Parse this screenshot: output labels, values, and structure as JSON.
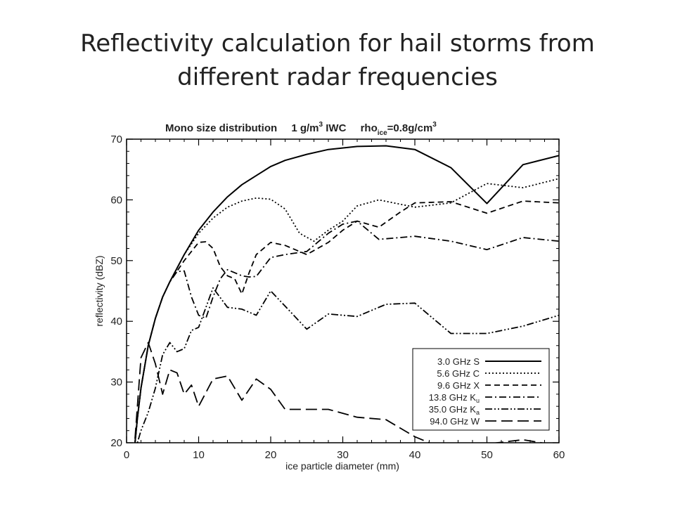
{
  "slide": {
    "title_line1": "Reflectivity calculation for hail storms from",
    "title_line2": "different radar frequencies"
  },
  "chart_data": {
    "type": "line",
    "title_parts": {
      "main": "Mono size distribution",
      "iwc": "1 g/m",
      "iwc_sup": "3",
      "iwc_tail": " IWC",
      "rho": "rho",
      "rho_sub": "ice",
      "rho_val": "=0.8g/cm",
      "rho_sup": "3"
    },
    "xlabel": "ice particle diameter (mm)",
    "ylabel": "reflectivity (dBZ)",
    "xlim": [
      0,
      60
    ],
    "ylim": [
      20,
      70
    ],
    "xticks": [
      0,
      10,
      20,
      30,
      40,
      50,
      60
    ],
    "yticks": [
      20,
      30,
      40,
      50,
      60,
      70
    ],
    "grid": false,
    "legend_position": "bottom-right",
    "series": [
      {
        "name": "3.0 GHz S",
        "name_main": "3.0 GHz S",
        "name_sub": "",
        "dash": "solid",
        "x": [
          1,
          1.5,
          2,
          3,
          4,
          5,
          6,
          8,
          10,
          12,
          14,
          16,
          18,
          20,
          22,
          25,
          28,
          32,
          36,
          40,
          45,
          50,
          55,
          60
        ],
        "y": [
          18,
          24,
          29,
          36,
          40.5,
          44,
          46.5,
          51,
          55,
          58,
          60.5,
          62.5,
          64,
          65.5,
          66.5,
          67.5,
          68.3,
          68.8,
          68.9,
          68.3,
          65.3,
          59.4,
          65.8,
          67.3
        ]
      },
      {
        "name": "5.6 GHz C",
        "name_main": "5.6 GHz C",
        "name_sub": "",
        "dash": "dot",
        "x": [
          1,
          1.5,
          2,
          3,
          4,
          5,
          6,
          8,
          10,
          12,
          14,
          16,
          18,
          20,
          22,
          24,
          26,
          28,
          30,
          32,
          35,
          40,
          45,
          50,
          55,
          60
        ],
        "y": [
          18,
          24,
          29,
          36,
          40.5,
          44,
          46.5,
          51,
          54.5,
          57,
          58.8,
          59.8,
          60.3,
          60.1,
          58.5,
          54.5,
          53.2,
          55,
          56.5,
          59,
          60,
          58.8,
          59.5,
          62.7,
          62,
          63.5
        ]
      },
      {
        "name": "9.6 GHz X",
        "name_main": "9.6 GHz X",
        "name_sub": "",
        "dash": "dash",
        "x": [
          1,
          1.5,
          2,
          3,
          4,
          5,
          6,
          8,
          10,
          11,
          12,
          13,
          14,
          15,
          16,
          17,
          18,
          20,
          22,
          25,
          28,
          30,
          32,
          35,
          38,
          40,
          45,
          50,
          55,
          60
        ],
        "y": [
          18,
          24,
          29,
          36,
          40.5,
          44,
          46.5,
          50,
          53,
          53.1,
          52,
          49,
          47.5,
          47,
          44.5,
          48,
          51,
          53,
          52.5,
          51,
          53,
          55,
          56.5,
          55.5,
          58,
          59.5,
          59.7,
          57.8,
          59.8,
          59.5
        ]
      },
      {
        "name": "13.8 GHz Ku",
        "name_main": "13.8 GHz K",
        "name_sub": "u",
        "dash": "dashdot",
        "x": [
          1,
          1.5,
          2,
          3,
          4,
          5,
          6,
          7,
          8,
          9,
          10,
          11,
          12,
          13,
          14,
          15,
          16,
          17,
          18,
          20,
          22,
          25,
          28,
          30,
          32,
          35,
          40,
          45,
          50,
          55,
          60
        ],
        "y": [
          18,
          24,
          29,
          36,
          40.5,
          44,
          46.5,
          48.2,
          48.3,
          44,
          41,
          40.5,
          44,
          47,
          48.5,
          48,
          47.5,
          47.3,
          47.4,
          50.5,
          51,
          51.5,
          54.5,
          56,
          56.5,
          53.5,
          54,
          53.2,
          51.8,
          53.8,
          53.2
        ]
      },
      {
        "name": "35.0 GHz Ka",
        "name_main": "35.0 GHz K",
        "name_sub": "a",
        "dash": "dashdotdot",
        "x": [
          1,
          2,
          3,
          4,
          5,
          6,
          7,
          8,
          9,
          10,
          12,
          14,
          16,
          18,
          20,
          22,
          25,
          28,
          32,
          36,
          40,
          45,
          50,
          55,
          60
        ],
        "y": [
          18,
          22,
          25,
          29,
          34.5,
          36.5,
          35,
          35.5,
          38.5,
          39,
          45.5,
          42.3,
          42,
          41,
          45,
          42.5,
          38.7,
          41.2,
          40.8,
          42.8,
          43,
          38,
          38,
          39.2,
          41
        ]
      },
      {
        "name": "94.0 GHz W",
        "name_main": "94.0 GHz W",
        "name_sub": "",
        "dash": "longdash",
        "x": [
          1,
          2,
          3,
          4,
          5,
          6,
          7,
          8,
          9,
          10,
          12,
          14,
          16,
          18,
          20,
          22,
          25,
          28,
          32,
          36,
          40,
          43,
          45,
          50,
          55,
          60
        ],
        "y": [
          18,
          34,
          36.5,
          33,
          28,
          32,
          31.5,
          28,
          29.5,
          26,
          30.5,
          31,
          27,
          30.5,
          28.8,
          25.5,
          25.5,
          25.5,
          24.2,
          23.8,
          21,
          19.5,
          19.5,
          19.8,
          20.5,
          19.5
        ]
      }
    ]
  }
}
